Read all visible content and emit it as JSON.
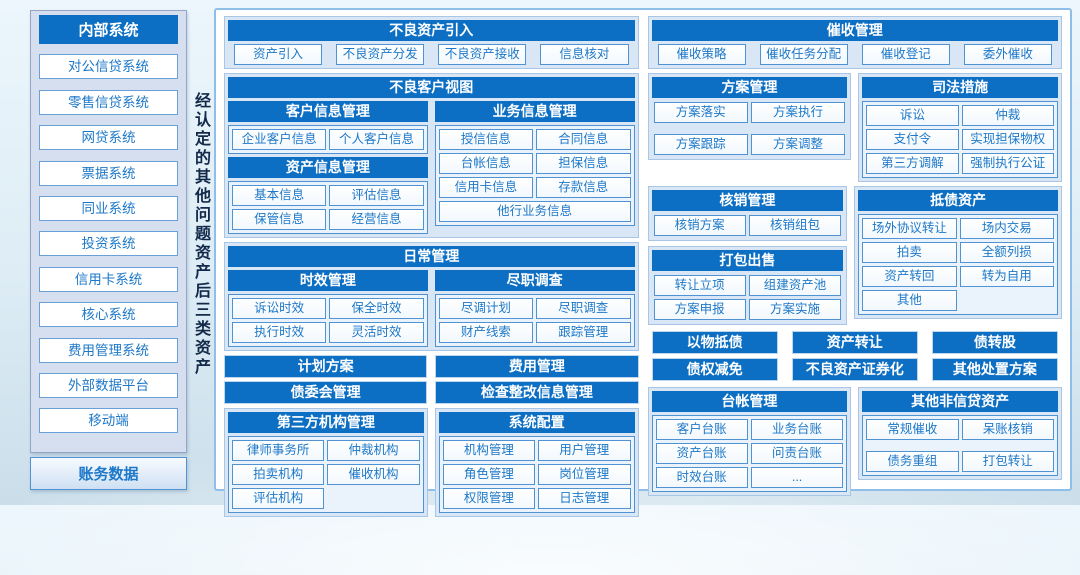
{
  "colors": {
    "header_blue": "#0d6fc4",
    "item_border": "#4f93d2",
    "item_text": "#1d78c8",
    "sec_bg": "#d8e6f6",
    "sec_border": "#aac6e6",
    "main_border": "#8fbfe8",
    "sidebar_bg": "#d6dfef",
    "sidebar_border": "#96a5c5",
    "vlabel_color": "#12294a"
  },
  "sidebar": {
    "header": "内部系统",
    "items": [
      "对公信贷系统",
      "零售信贷系统",
      "网贷系统",
      "票据系统",
      "同业系统",
      "投资系统",
      "信用卡系统",
      "核心系统",
      "费用管理系统",
      "外部数据平台",
      "移动端"
    ],
    "footer": "账务数据"
  },
  "vertical_label": "经认定的其他问题资产后三类资产",
  "main": {
    "left": {
      "intake": {
        "title": "不良资产引入",
        "items": [
          "资产引入",
          "不良资产分发",
          "不良资产接收",
          "信息核对"
        ]
      },
      "customer_view": {
        "title": "不良客户视图",
        "customer_info": {
          "title": "客户信息管理",
          "items": [
            "企业客户信息",
            "个人客户信息"
          ]
        },
        "asset_info": {
          "title": "资产信息管理",
          "items": [
            "基本信息",
            "评估信息",
            "保管信息",
            "经营信息"
          ]
        },
        "business_info": {
          "title": "业务信息管理",
          "items": [
            "授信信息",
            "合同信息",
            "台帐信息",
            "担保信息",
            "信用卡信息",
            "存款信息"
          ],
          "wide": "他行业务信息"
        }
      },
      "daily": {
        "title": "日常管理",
        "aging": {
          "title": "时效管理",
          "items": [
            "诉讼时效",
            "保全时效",
            "执行时效",
            "灵活时效"
          ]
        },
        "due": {
          "title": "尽职调查",
          "items": [
            "尽调计划",
            "尽职调查",
            "财产线索",
            "跟踪管理"
          ]
        },
        "bars": [
          "计划方案",
          "费用管理",
          "债委会管理",
          "检查整改信息管理"
        ]
      },
      "third_party": {
        "title": "第三方机构管理",
        "items": [
          "律师事务所",
          "仲裁机构",
          "拍卖机构",
          "催收机构",
          "评估机构"
        ]
      },
      "system_config": {
        "title": "系统配置",
        "items": [
          "机构管理",
          "用户管理",
          "角色管理",
          "岗位管理",
          "权限管理",
          "日志管理"
        ]
      }
    },
    "right": {
      "collection": {
        "title": "催收管理",
        "items": [
          "催收策略",
          "催收任务分配",
          "催收登记",
          "委外催收"
        ]
      },
      "plan": {
        "title": "方案管理",
        "items": [
          "方案落实",
          "方案执行",
          "方案跟踪",
          "方案调整"
        ]
      },
      "judicial": {
        "title": "司法措施",
        "items": [
          "诉讼",
          "仲裁",
          "支付令",
          "实现担保物权",
          "第三方调解",
          "强制执行公证"
        ]
      },
      "writeoff": {
        "title": "核销管理",
        "items": [
          "核销方案",
          "核销组包"
        ]
      },
      "package_sale": {
        "title": "打包出售",
        "items": [
          "转让立项",
          "组建资产池",
          "方案申报",
          "方案实施"
        ]
      },
      "debt_assets": {
        "title": "抵债资产",
        "items": [
          "场外协议转让",
          "场内交易",
          "拍卖",
          "全额列损",
          "资产转回",
          "转为自用",
          "其他"
        ]
      },
      "disposal_bars": [
        "以物抵债",
        "资产转让",
        "债转股",
        "债权减免",
        "不良资产证券化",
        "其他处置方案"
      ],
      "ledger": {
        "title": "台帐管理",
        "items": [
          "客户台账",
          "业务台账",
          "资产台账",
          "问责台账",
          "时效台账",
          "..."
        ]
      },
      "other_noncredit": {
        "title": "其他非信贷资产",
        "items": [
          "常规催收",
          "呆账核销",
          "债务重组",
          "打包转让"
        ]
      }
    }
  }
}
